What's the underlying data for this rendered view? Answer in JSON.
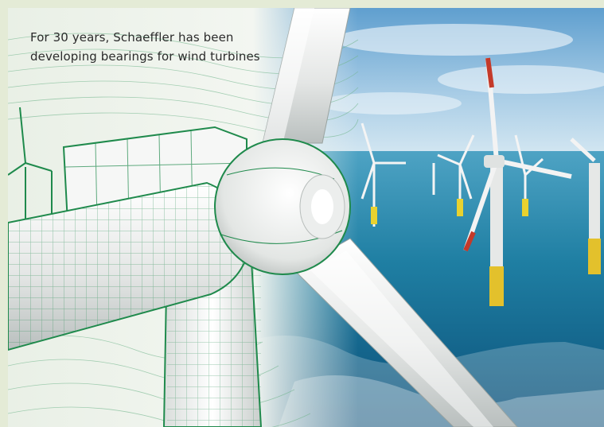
{
  "caption": {
    "text": "For 30 years, Schaeffler has been developing bearings for wind turbines"
  },
  "colors": {
    "frame": "#e4ebd6",
    "wireframe": "#1f8a4c",
    "sky_top": "#6aa7d3",
    "sea": "#1f7fa3",
    "turbine_white": "#f1f2f1"
  }
}
